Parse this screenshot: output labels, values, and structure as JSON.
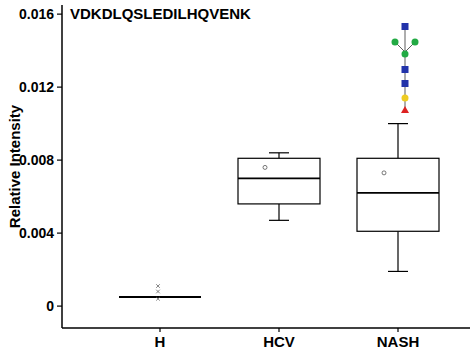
{
  "chart_data": {
    "type": "box",
    "title": "VDKDLQSLEDILHQVENK",
    "y_label": "Relative Intensity",
    "categories": [
      "H",
      "HCV",
      "NASH"
    ],
    "min": [
      0.0005,
      0.0047,
      0.0019
    ],
    "q1": [
      0.0005,
      0.0056,
      0.0041
    ],
    "median": [
      0.0005,
      0.007,
      0.0062
    ],
    "q3": [
      0.0005,
      0.0081,
      0.0081
    ],
    "max": [
      0.0005,
      0.0084,
      0.01
    ],
    "mean": [
      null,
      0.0076,
      0.0073
    ],
    "points": [
      [
        0.0011,
        0.0008,
        0.0004
      ],
      [],
      []
    ],
    "color": "#000000",
    "ylim": [
      -0.0012,
      0.0165
    ],
    "yticks": [
      0,
      0.004,
      0.008,
      0.012,
      0.016
    ]
  }
}
